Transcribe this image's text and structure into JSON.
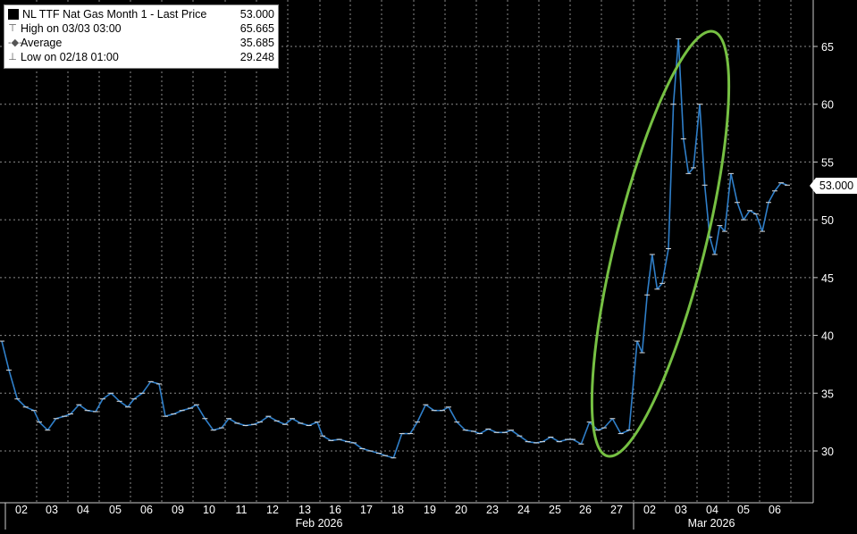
{
  "legend": {
    "title": "NL TTF Nat Gas Month 1 - Last Price",
    "last_value": "53.000",
    "high_label": "High on 03/03 03:00",
    "high_value": "65.665",
    "average_label": "Average",
    "average_value": "35.685",
    "low_label": "Low on 02/18 01:00",
    "low_value": "29.248"
  },
  "last_price_tag": "53.000",
  "colors": {
    "background": "#000000",
    "price_line": "#2f7fc9",
    "highlight_ellipse": "#76c043",
    "text": "#ffffff",
    "grid": "#8a8a8a"
  },
  "chart_data": {
    "type": "line",
    "title": "NL TTF Nat Gas Month 1 - Last Price",
    "y_ticks": [
      30,
      35,
      40,
      45,
      50,
      55,
      60,
      65
    ],
    "ylim": [
      25,
      70
    ],
    "y_axis_side": "right",
    "grid": true,
    "x_tick_labels": [
      "02",
      "03",
      "04",
      "05",
      "06",
      "09",
      "10",
      "11",
      "12",
      "13",
      "16",
      "17",
      "18",
      "19",
      "20",
      "23",
      "24",
      "25",
      "26",
      "27",
      "02",
      "03",
      "04",
      "05",
      "06"
    ],
    "x_group_labels": [
      "Feb 2026",
      "Mar 2026"
    ],
    "series": [
      {
        "name": "NL TTF Nat Gas Month 1 - Last Price",
        "points": [
          [
            "01/30",
            39.5
          ],
          [
            "02/02",
            37.0
          ],
          [
            "02/02",
            34.5
          ],
          [
            "02/02",
            33.8
          ],
          [
            "02/02",
            33.5
          ],
          [
            "02/03",
            32.5
          ],
          [
            "02/03",
            31.8
          ],
          [
            "02/03",
            32.8
          ],
          [
            "02/03",
            33.0
          ],
          [
            "02/04",
            33.2
          ],
          [
            "02/04",
            34.0
          ],
          [
            "02/04",
            33.5
          ],
          [
            "02/04",
            33.4
          ],
          [
            "02/05",
            34.5
          ],
          [
            "02/05",
            35.0
          ],
          [
            "02/05",
            34.3
          ],
          [
            "02/05",
            33.8
          ],
          [
            "02/06",
            34.5
          ],
          [
            "02/06",
            35.0
          ],
          [
            "02/06",
            36.0
          ],
          [
            "02/06",
            35.8
          ],
          [
            "02/09",
            33.0
          ],
          [
            "02/09",
            33.2
          ],
          [
            "02/09",
            33.5
          ],
          [
            "02/09",
            33.7
          ],
          [
            "02/10",
            34.0
          ],
          [
            "02/10",
            32.8
          ],
          [
            "02/10",
            31.8
          ],
          [
            "02/10",
            32.0
          ],
          [
            "02/11",
            32.8
          ],
          [
            "02/11",
            32.4
          ],
          [
            "02/11",
            32.2
          ],
          [
            "02/11",
            32.3
          ],
          [
            "02/12",
            32.5
          ],
          [
            "02/12",
            33.0
          ],
          [
            "02/12",
            32.6
          ],
          [
            "02/12",
            32.3
          ],
          [
            "02/13",
            32.8
          ],
          [
            "02/13",
            32.4
          ],
          [
            "02/13",
            32.2
          ],
          [
            "02/13",
            32.5
          ],
          [
            "02/16",
            31.3
          ],
          [
            "02/16",
            30.9
          ],
          [
            "02/16",
            31.0
          ],
          [
            "02/16",
            30.8
          ],
          [
            "02/17",
            30.7
          ],
          [
            "02/17",
            30.2
          ],
          [
            "02/17",
            30.0
          ],
          [
            "02/17",
            29.8
          ],
          [
            "02/18",
            29.6
          ],
          [
            "02/18",
            29.4
          ],
          [
            "02/18",
            31.5
          ],
          [
            "02/18",
            31.5
          ],
          [
            "02/19",
            32.5
          ],
          [
            "02/19",
            34.0
          ],
          [
            "02/19",
            33.5
          ],
          [
            "02/19",
            33.5
          ],
          [
            "02/20",
            33.8
          ],
          [
            "02/20",
            32.5
          ],
          [
            "02/20",
            31.8
          ],
          [
            "02/20",
            31.7
          ],
          [
            "02/23",
            31.5
          ],
          [
            "02/23",
            31.9
          ],
          [
            "02/23",
            31.6
          ],
          [
            "02/23",
            31.6
          ],
          [
            "02/24",
            31.8
          ],
          [
            "02/24",
            31.3
          ],
          [
            "02/24",
            30.8
          ],
          [
            "02/24",
            30.7
          ],
          [
            "02/25",
            30.8
          ],
          [
            "02/25",
            31.2
          ],
          [
            "02/25",
            30.8
          ],
          [
            "02/25",
            31.0
          ],
          [
            "02/26",
            31.0
          ],
          [
            "02/26",
            30.6
          ],
          [
            "02/26",
            32.5
          ],
          [
            "02/26",
            31.8
          ],
          [
            "02/27",
            32.0
          ],
          [
            "02/27",
            32.8
          ],
          [
            "02/27",
            31.5
          ],
          [
            "02/27",
            31.8
          ],
          [
            "03/02",
            39.5
          ],
          [
            "03/02",
            38.5
          ],
          [
            "03/02",
            43.5
          ],
          [
            "03/02",
            47.0
          ],
          [
            "03/02",
            44.0
          ],
          [
            "03/02",
            44.5
          ],
          [
            "03/03",
            47.5
          ],
          [
            "03/03",
            60.0
          ],
          [
            "03/03",
            65.665
          ],
          [
            "03/03",
            57.0
          ],
          [
            "03/03",
            54.0
          ],
          [
            "03/03",
            54.5
          ],
          [
            "03/04",
            60.0
          ],
          [
            "03/04",
            53.0
          ],
          [
            "03/04",
            48.5
          ],
          [
            "03/04",
            47.0
          ],
          [
            "03/04",
            49.5
          ],
          [
            "03/04",
            49.0
          ],
          [
            "03/05",
            54.0
          ],
          [
            "03/05",
            51.5
          ],
          [
            "03/05",
            50.0
          ],
          [
            "03/05",
            50.8
          ],
          [
            "03/05",
            50.5
          ],
          [
            "03/06",
            49.0
          ],
          [
            "03/06",
            51.5
          ],
          [
            "03/06",
            52.5
          ],
          [
            "03/06",
            53.2
          ],
          [
            "03/06",
            53.0
          ]
        ]
      }
    ]
  }
}
